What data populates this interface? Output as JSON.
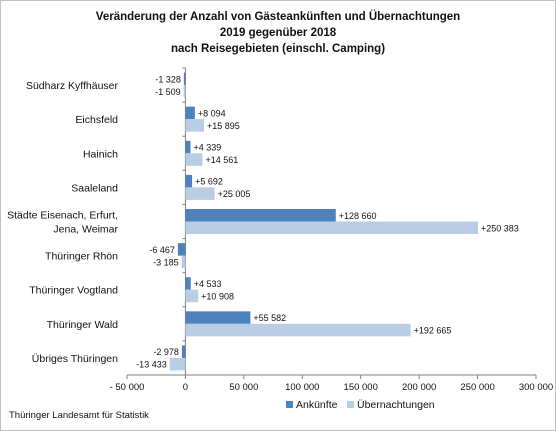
{
  "chart_data": {
    "type": "bar",
    "orientation": "horizontal",
    "title_lines": [
      "Veränderung der Anzahl von Gästeankünften und Übernachtungen",
      "2019 gegenüber 2018",
      "nach Reisegebieten (einschl. Camping)"
    ],
    "categories": [
      [
        "Südharz Kyffhäuser"
      ],
      [
        "Eichsfeld"
      ],
      [
        "Hainich"
      ],
      [
        "Saaleland"
      ],
      [
        "Städte Eisenach, Erfurt,",
        "Jena, Weimar"
      ],
      [
        "Thüringer Rhön"
      ],
      [
        "Thüringer Vogtland"
      ],
      [
        "Thüringer Wald"
      ],
      [
        "Übriges Thüringen"
      ]
    ],
    "series": [
      {
        "name": "Ankünfte",
        "color": "#4f81bd",
        "values": [
          -1328,
          8094,
          4339,
          5692,
          128660,
          -6467,
          4533,
          55582,
          -2978
        ],
        "labels": [
          "-1 328",
          "+8 094",
          "+4 339",
          "+5 692",
          "+128 660",
          "-6 467",
          "+4 533",
          "+55 582",
          "-2 978"
        ]
      },
      {
        "name": "Übernachtungen",
        "color": "#b9cde5",
        "values": [
          -1509,
          15895,
          14561,
          25005,
          250383,
          -3185,
          10908,
          192665,
          -13433
        ],
        "labels": [
          "-1 509",
          "+15 895",
          "+14 561",
          "+25 005",
          "+250 383",
          "-3 185",
          "+10 908",
          "+192 665",
          "-13 433"
        ]
      }
    ],
    "xlim": [
      -50000,
      300000
    ],
    "xticks": [
      -50000,
      0,
      50000,
      100000,
      150000,
      200000,
      250000,
      300000
    ],
    "xtick_labels": [
      "- 50 000",
      "0",
      "50 000",
      "100 000",
      "150 000",
      "200 000",
      "250 000",
      "300 000"
    ],
    "grid": false,
    "legend_position": "bottom"
  },
  "source": "Thüringer Landesamt für Statistik"
}
